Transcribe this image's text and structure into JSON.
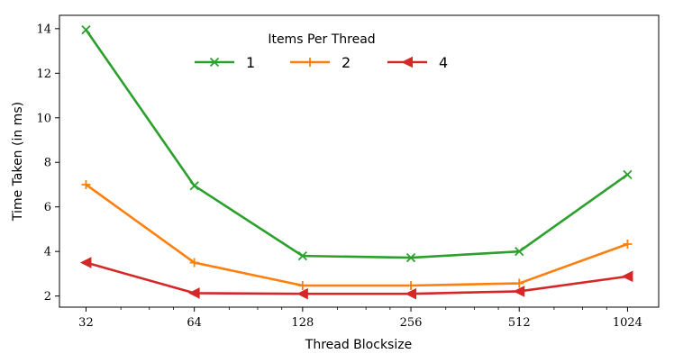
{
  "chart_data": {
    "type": "line",
    "xlabel": "Thread Blocksize",
    "ylabel": "Time Taken (in ms)",
    "x": [
      32,
      64,
      128,
      256,
      512,
      1024
    ],
    "x_scale": "log2",
    "xlim": [
      27,
      1250
    ],
    "ylim": [
      1.5,
      14.6
    ],
    "y_ticks": [
      2,
      4,
      6,
      8,
      10,
      12,
      14
    ],
    "x_ticks": [
      "32",
      "64",
      "128",
      "256",
      "512",
      "1024"
    ],
    "grid": false,
    "legend": {
      "title": "Items Per Thread",
      "placement": "top-center",
      "ncol": 3
    },
    "series": [
      {
        "name": "1",
        "color": "#2ca02c",
        "marker": "x",
        "values": [
          13.95,
          6.95,
          3.8,
          3.72,
          4.0,
          7.45
        ]
      },
      {
        "name": "2",
        "color": "#ff7f0e",
        "marker": "+",
        "values": [
          7.0,
          3.5,
          2.47,
          2.47,
          2.57,
          4.33
        ]
      },
      {
        "name": "4",
        "color": "#d62728",
        "marker": "triangle-left",
        "values": [
          3.5,
          2.13,
          2.1,
          2.1,
          2.21,
          2.88
        ]
      }
    ]
  }
}
